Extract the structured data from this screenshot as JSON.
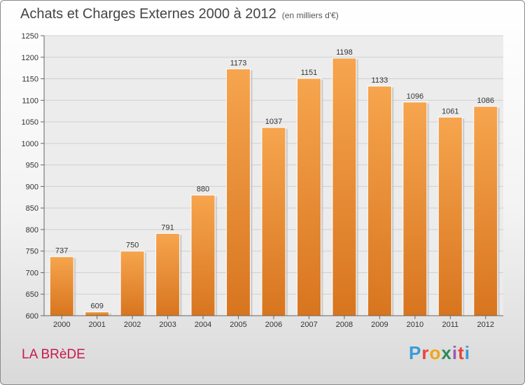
{
  "header": {
    "title": "Achats et Charges Externes 2000 à 2012",
    "unit": "(en milliers d'€)"
  },
  "footer": {
    "town": "LA BRèDE",
    "logo": [
      "P",
      "r",
      "o",
      "x",
      "i",
      "t",
      "i"
    ],
    "logo_colors": [
      "#3a9ad9",
      "#e8443a",
      "#f2a516",
      "#2e8b57",
      "#9b59b6",
      "#e8443a",
      "#3a9ad9"
    ]
  },
  "colors": {
    "bar_light": "#f6a54e",
    "bar_dark": "#d8751f",
    "grid": "#cfcfcf",
    "town": "#c8194c"
  },
  "chart_data": {
    "type": "bar",
    "title": "Achats et Charges Externes 2000 à 2012",
    "subtitle": "(en milliers d'€)",
    "xlabel": "",
    "ylabel": "",
    "categories": [
      "2000",
      "2001",
      "2002",
      "2003",
      "2004",
      "2005",
      "2006",
      "2007",
      "2008",
      "2009",
      "2010",
      "2011",
      "2012"
    ],
    "values": [
      737,
      609,
      750,
      791,
      880,
      1173,
      1037,
      1151,
      1198,
      1133,
      1096,
      1061,
      1086
    ],
    "ylim": [
      600,
      1250
    ],
    "yticks": [
      600,
      650,
      700,
      750,
      800,
      850,
      900,
      950,
      1000,
      1050,
      1100,
      1150,
      1200,
      1250
    ],
    "grid": true,
    "data_labels": true
  }
}
